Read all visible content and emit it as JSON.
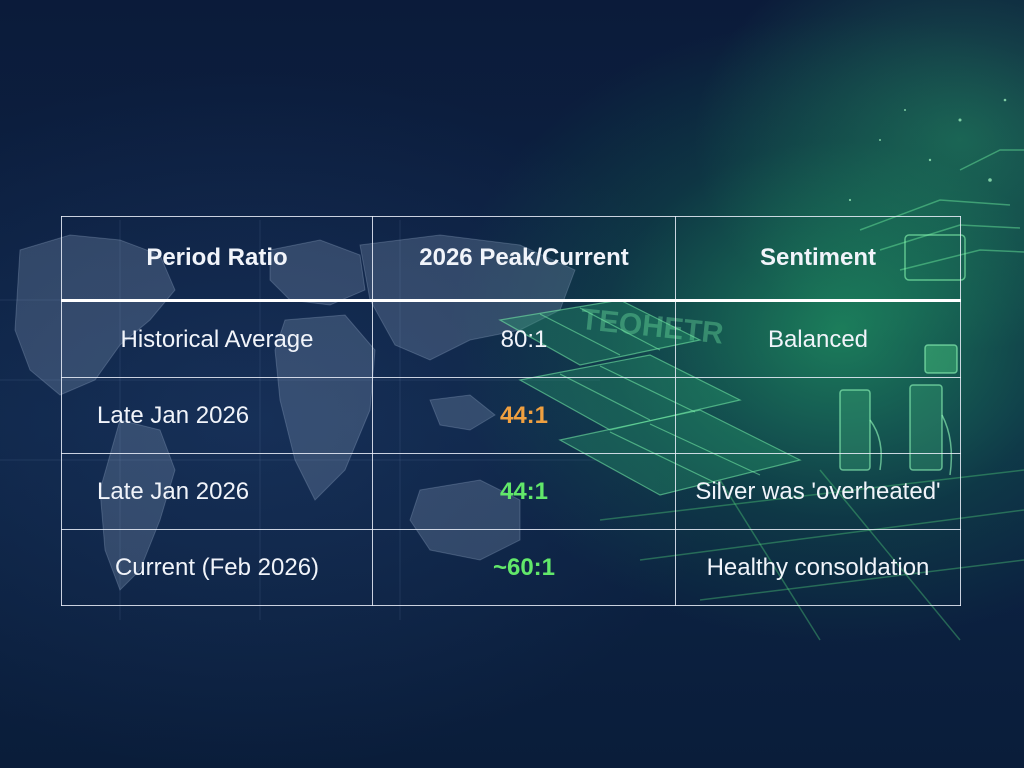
{
  "table": {
    "headers": [
      "Period Ratio",
      "2026 Peak/Current",
      "Sentiment"
    ],
    "rows": [
      {
        "period": "Historical Average",
        "ratio": "80:1",
        "sentiment": "Balanced"
      },
      {
        "period": "Late Jan 2026",
        "ratio": "44:1",
        "sentiment": ""
      },
      {
        "period": "Late Jan 2026",
        "ratio": "44:1",
        "sentiment": "Silver was 'overheated'"
      },
      {
        "period": "Current (Feb 2026)",
        "ratio": "~60:1",
        "sentiment": "Healthy consoldation"
      }
    ]
  },
  "colors": {
    "background": "#0b1b3a",
    "grid_line": "#ebf0fa",
    "highlight_orange": "#f0a040",
    "highlight_green": "#62e86a",
    "glow_green": "#28c86e"
  },
  "background_sign_text": "TEOHETR"
}
